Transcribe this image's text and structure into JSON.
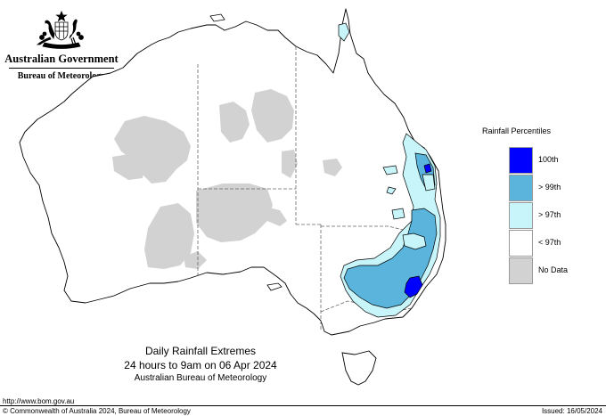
{
  "header": {
    "government": "Australian Government",
    "bureau": "Bureau of Meteorology"
  },
  "legend": {
    "title": "Rainfall Percentiles",
    "items": [
      {
        "label": "100th",
        "color": "#0000ff"
      },
      {
        "label": "> 99th",
        "color": "#5ab4dc"
      },
      {
        "label": "> 97th",
        "color": "#c8f5fa"
      },
      {
        "label": "< 97th",
        "color": "#ffffff"
      },
      {
        "label": "No Data",
        "color": "#d2d2d2"
      }
    ]
  },
  "caption": {
    "line1": "Daily Rainfall Extremes",
    "line2": "24 hours to 9am on 06 Apr 2024",
    "line3": "Australian Bureau of Meteorology"
  },
  "footer": {
    "url": "http://www.bom.gov.au",
    "copyright": "© Commonwealth of Australia 2024, Bureau of Meteorology",
    "issued": "Issued: 16/05/2024"
  },
  "colors": {
    "no_data": "#d2d2d2",
    "above_99": "#5ab4dc",
    "above_97": "#c8f5fa",
    "max": "#0000ff",
    "coast": "#000000",
    "border": "#555555"
  }
}
